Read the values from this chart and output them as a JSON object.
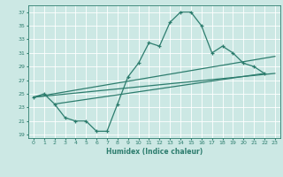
{
  "xlabel": "Humidex (Indice chaleur)",
  "xlim": [
    -0.5,
    23.5
  ],
  "ylim": [
    18.5,
    38
  ],
  "yticks": [
    19,
    21,
    23,
    25,
    27,
    29,
    31,
    33,
    35,
    37
  ],
  "xticks": [
    0,
    1,
    2,
    3,
    4,
    5,
    6,
    7,
    8,
    9,
    10,
    11,
    12,
    13,
    14,
    15,
    16,
    17,
    18,
    19,
    20,
    21,
    22,
    23
  ],
  "bg_color": "#cce8e4",
  "grid_color": "#b0d4d0",
  "line_color": "#2d7d6e",
  "line1_x": [
    0,
    1,
    2,
    3,
    4,
    5,
    6,
    7,
    8,
    9,
    10,
    11,
    12,
    13,
    14,
    15,
    16,
    17,
    18,
    19,
    20,
    21,
    22
  ],
  "line1_y": [
    24.5,
    25.0,
    23.5,
    21.5,
    21.0,
    21.0,
    19.5,
    19.5,
    23.5,
    27.5,
    29.5,
    32.5,
    32.0,
    35.5,
    37.0,
    37.0,
    35.0,
    31.0,
    32.0,
    31.0,
    29.5,
    29.0,
    28.0
  ],
  "line2_x": [
    0,
    23
  ],
  "line2_y": [
    24.5,
    28.0
  ],
  "line3_x": [
    0,
    23
  ],
  "line3_y": [
    24.5,
    30.5
  ],
  "line4_x": [
    2,
    22
  ],
  "line4_y": [
    23.5,
    28.0
  ]
}
